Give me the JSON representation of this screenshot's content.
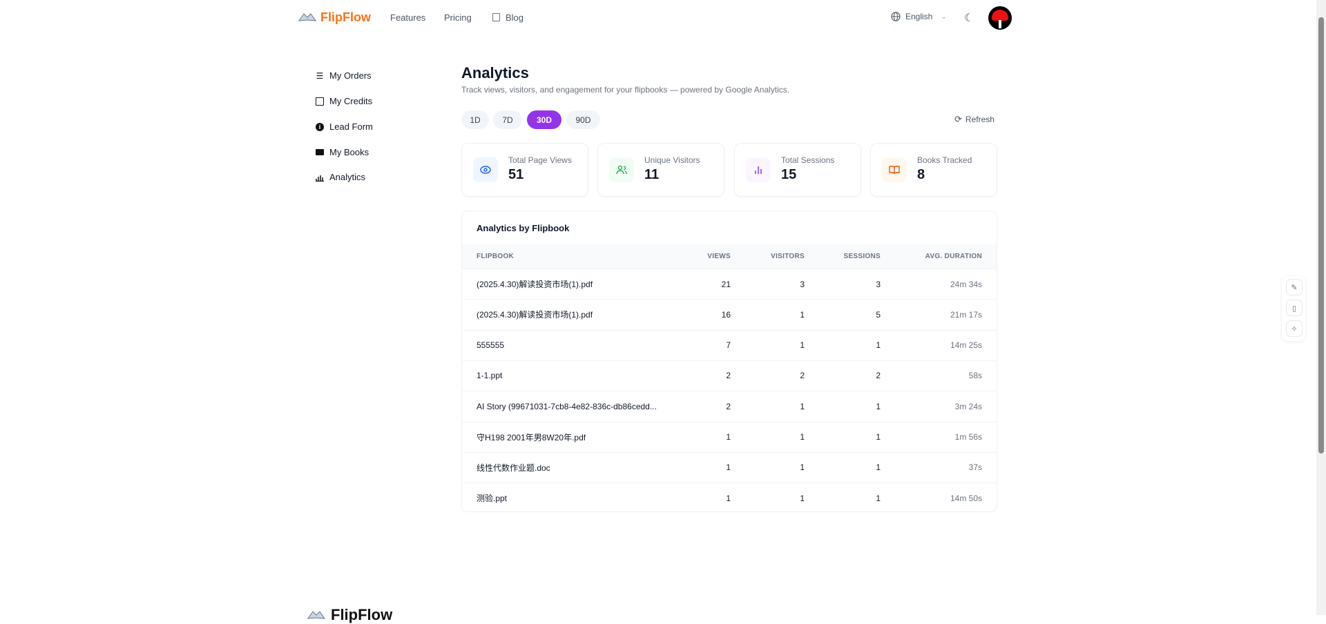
{
  "header": {
    "brand": "FlipFlow",
    "nav": [
      {
        "label": "Features"
      },
      {
        "label": "Pricing"
      },
      {
        "label": "Blog",
        "icon": "newspaper-icon"
      }
    ],
    "language": "English",
    "theme_icon": "moon-icon",
    "avatar_icon": "avatar"
  },
  "sidebar": {
    "items": [
      {
        "label": "My Orders",
        "icon": "list-icon"
      },
      {
        "label": "My Credits",
        "icon": "wallet-icon"
      },
      {
        "label": "Lead Form",
        "icon": "info-icon"
      },
      {
        "label": "My Books",
        "icon": "laptop-icon"
      },
      {
        "label": "Analytics",
        "icon": "bar-chart-icon"
      }
    ]
  },
  "main": {
    "title": "Analytics",
    "subtitle": "Track views, visitors, and engagement for your flipbooks — powered by Google Analytics.",
    "ranges": [
      {
        "label": "1D"
      },
      {
        "label": "7D"
      },
      {
        "label": "30D",
        "active": true
      },
      {
        "label": "90D"
      }
    ],
    "refresh": "Refresh",
    "stats": [
      {
        "label": "Total Page Views",
        "value": "51",
        "icon": "eye-icon",
        "color": "#2563eb",
        "bg": "#eff6ff"
      },
      {
        "label": "Unique Visitors",
        "value": "11",
        "icon": "users-icon",
        "color": "#16a34a",
        "bg": "#f0fdf4"
      },
      {
        "label": "Total Sessions",
        "value": "15",
        "icon": "bar-chart-icon",
        "color": "#9333ea",
        "bg": "#faf5ff"
      },
      {
        "label": "Books Tracked",
        "value": "8",
        "icon": "book-icon",
        "color": "#ea580c",
        "bg": "#fff7ed"
      }
    ],
    "table": {
      "title": "Analytics by Flipbook",
      "columns": [
        "FLIPBOOK",
        "VIEWS",
        "VISITORS",
        "SESSIONS",
        "AVG. DURATION"
      ],
      "rows": [
        [
          "(2025.4.30)解读投资市场(1).pdf",
          "21",
          "3",
          "3",
          "24m 34s"
        ],
        [
          "(2025.4.30)解读投资市场(1).pdf",
          "16",
          "1",
          "5",
          "21m 17s"
        ],
        [
          "555555",
          "7",
          "1",
          "1",
          "14m 25s"
        ],
        [
          "1-1.ppt",
          "2",
          "2",
          "2",
          "58s"
        ],
        [
          "AI Story (99671031-7cb8-4e82-836c-db86cedd...",
          "2",
          "1",
          "1",
          "3m 24s"
        ],
        [
          "守H198 2001年男8W20年.pdf",
          "1",
          "1",
          "1",
          "1m 56s"
        ],
        [
          "线性代数作业题.doc",
          "1",
          "1",
          "1",
          "37s"
        ],
        [
          "测验.ppt",
          "1",
          "1",
          "1",
          "14m 50s"
        ]
      ]
    }
  },
  "floating_toolbar": [
    {
      "icon": "file-edit-icon"
    },
    {
      "icon": "sidebar-icon"
    },
    {
      "icon": "sparkle-icon"
    }
  ],
  "footer": {
    "brand": "FlipFlow"
  },
  "colors": {
    "accent": "#9333ea",
    "brand": "#f97316"
  }
}
